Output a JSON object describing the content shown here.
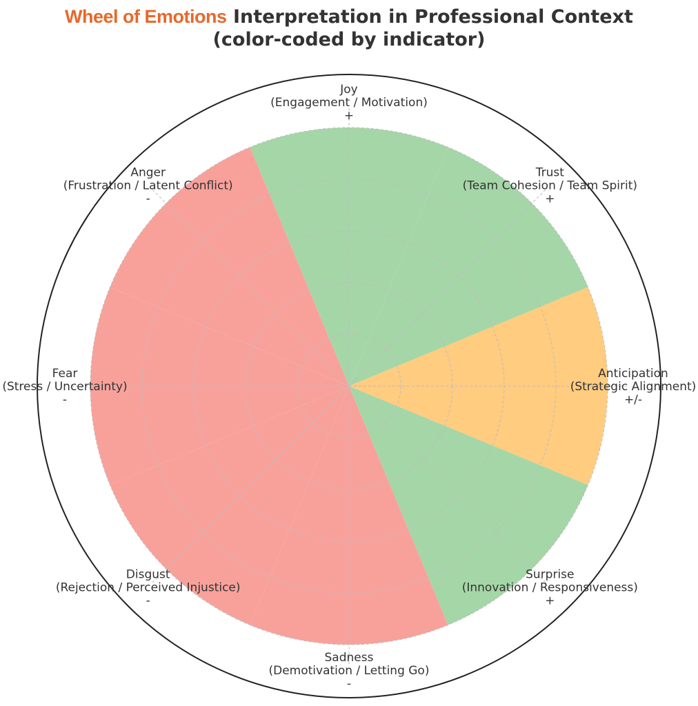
{
  "title": {
    "brand": "Wheel of Emotions",
    "line1_rest": "Interpretation in Professional Context",
    "line2": "(color-coded by indicator)"
  },
  "colors": {
    "positive": "#a5d6a7",
    "neutral": "#ffcc80",
    "negative": "#f8a19b",
    "brand": "#e8682a",
    "text": "#333333"
  },
  "chart_data": {
    "type": "pie",
    "title": "Wheel of Emotions Interpretation in Professional Context (color-coded by indicator)",
    "grid": true,
    "categories": [
      {
        "emotion": "Joy",
        "meaning": "(Engagement / Motivation)",
        "indicator": "+",
        "value": 1
      },
      {
        "emotion": "Trust",
        "meaning": "(Team Cohesion / Team Spirit)",
        "indicator": "+",
        "value": 1
      },
      {
        "emotion": "Anticipation",
        "meaning": "(Strategic Alignment)",
        "indicator": "+/-",
        "value": 1
      },
      {
        "emotion": "Surprise",
        "meaning": "(Innovation / Responsiveness)",
        "indicator": "+",
        "value": 1
      },
      {
        "emotion": "Sadness",
        "meaning": "(Demotivation / Letting Go)",
        "indicator": "-",
        "value": 1
      },
      {
        "emotion": "Disgust",
        "meaning": "(Rejection / Perceived Injustice)",
        "indicator": "-",
        "value": 1
      },
      {
        "emotion": "Fear",
        "meaning": "(Stress / Uncertainty)",
        "indicator": "-",
        "value": 1
      },
      {
        "emotion": "Anger",
        "meaning": "(Frustration / Latent Conflict)",
        "indicator": "-",
        "value": 1
      }
    ]
  }
}
